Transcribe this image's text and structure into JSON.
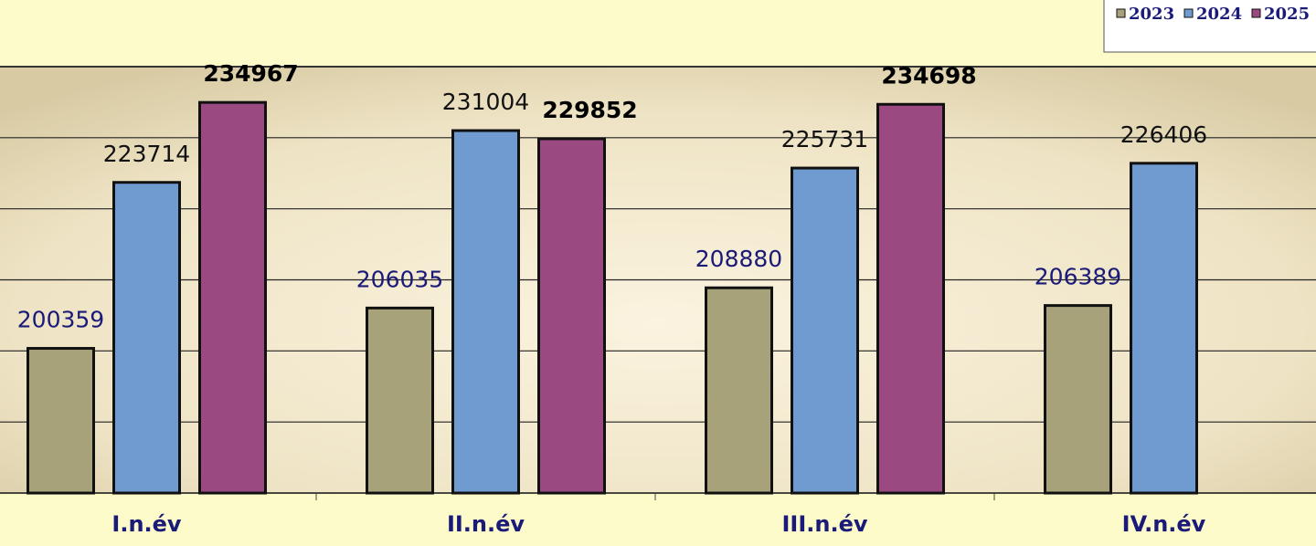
{
  "chart_data": {
    "type": "bar",
    "categories": [
      "I.n.év",
      "II.n.év",
      "III.n.év",
      "IV.n.év"
    ],
    "series": [
      {
        "name": "2023",
        "color": "#a8a27a",
        "values": [
          200359,
          206035,
          208880,
          206389
        ]
      },
      {
        "name": "2024",
        "color": "#6f9bd0",
        "values": [
          223714,
          231004,
          225731,
          226406
        ]
      },
      {
        "name": "2025",
        "color": "#9a4a80",
        "values": [
          234967,
          229852,
          234698,
          null
        ]
      }
    ],
    "ylim": [
      180000,
      240000
    ],
    "yticks": [
      180000,
      190000,
      200000,
      210000,
      220000,
      230000,
      240000
    ],
    "grid": true,
    "legend": "top-right"
  }
}
